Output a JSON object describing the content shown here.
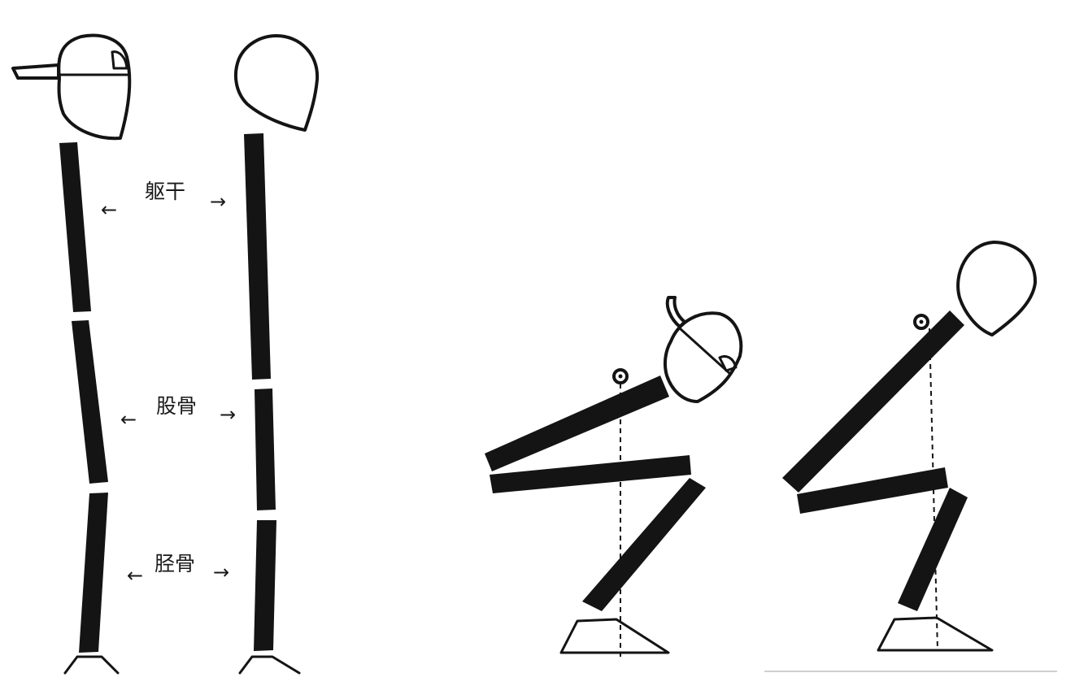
{
  "labels": {
    "torso": "躯干",
    "femur": "股骨",
    "tibia": "胫骨"
  },
  "arrows": {
    "left": "←",
    "right": "→"
  }
}
